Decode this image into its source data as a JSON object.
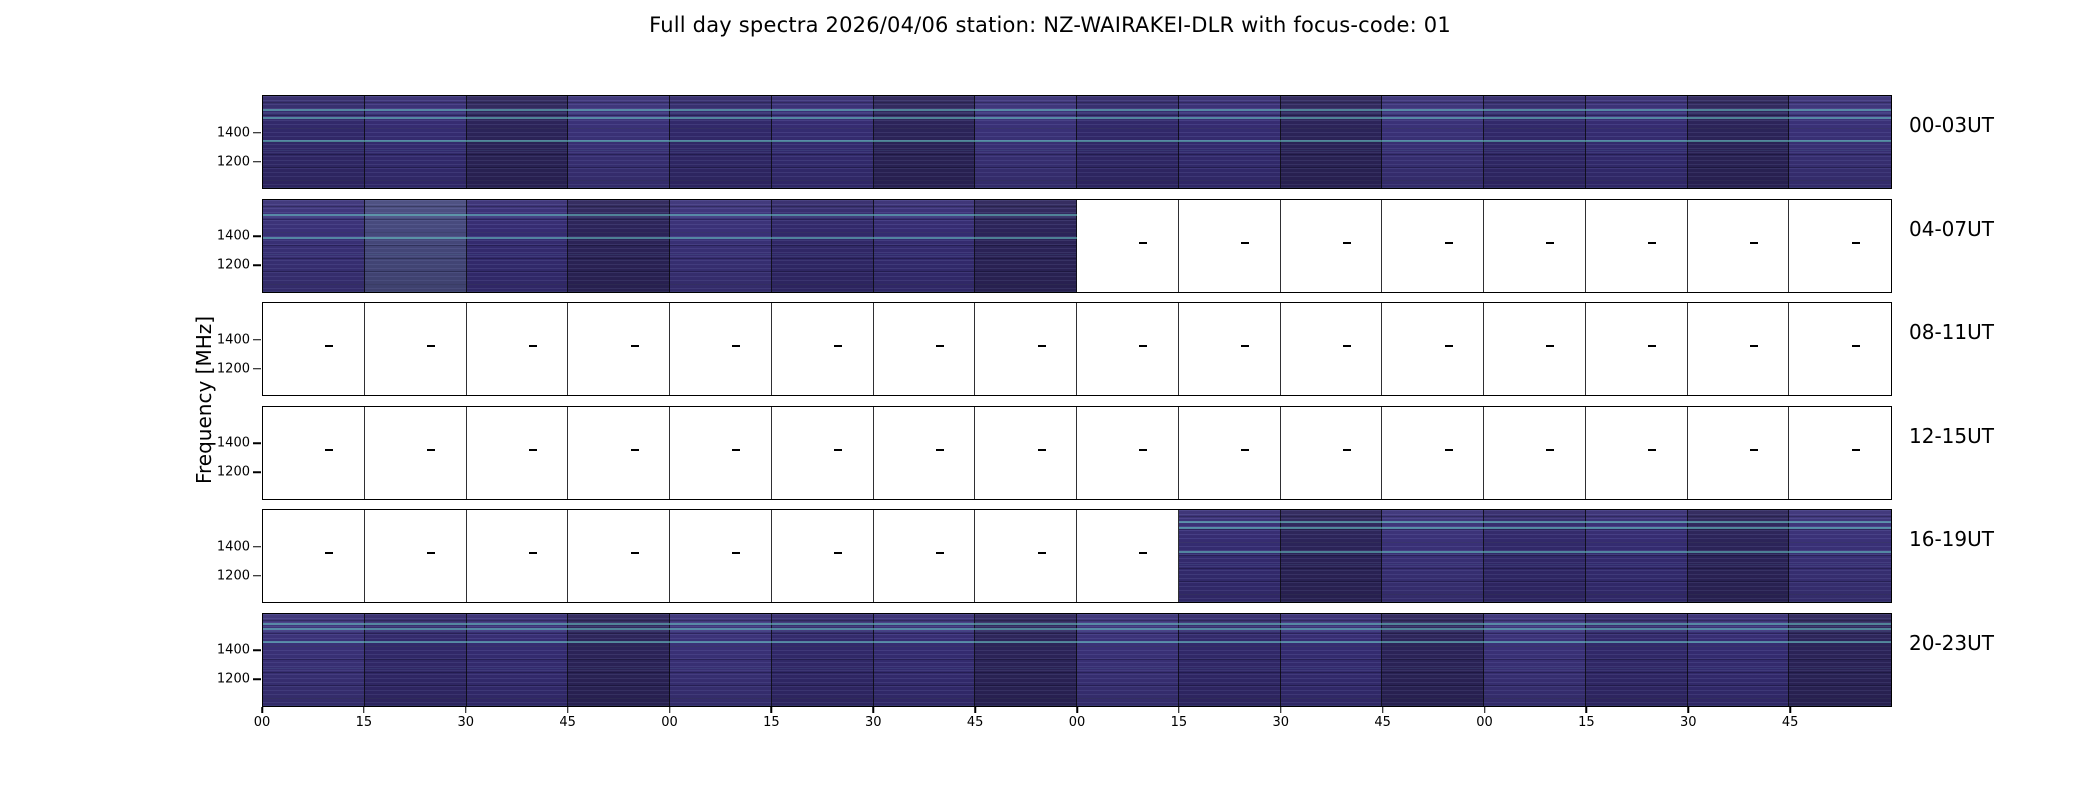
{
  "chart_data": {
    "type": "heatmap",
    "title": "Full day spectra 2026/04/06 station: NZ-WAIRAKEI-DLR with focus-code: 01",
    "date": "2026/04/06",
    "station": "NZ-WAIRAKEI-DLR",
    "focus_code": "01",
    "ylabel": "Frequency [MHz]",
    "y_tick_labels": [
      "1400",
      "1200"
    ],
    "x_tick_labels": [
      "00",
      "15",
      "30",
      "45",
      "00",
      "15",
      "30",
      "45",
      "00",
      "15",
      "30",
      "45",
      "00",
      "15",
      "30",
      "45"
    ],
    "segments_per_row": 16,
    "minutes_per_segment": 15,
    "grid": "vertical 15-minute separators, 6 stacked 4-hour panels",
    "legend": "none",
    "rows": [
      {
        "label": "00-03UT",
        "filled_from": 0,
        "filled_to": 16,
        "accent_lines": [
          15,
          24,
          49
        ]
      },
      {
        "label": "04-07UT",
        "filled_from": 0,
        "filled_to": 8,
        "accent_lines": [
          17,
          42
        ]
      },
      {
        "label": "08-11UT",
        "filled_from": 0,
        "filled_to": 0,
        "accent_lines": []
      },
      {
        "label": "12-15UT",
        "filled_from": 0,
        "filled_to": 0,
        "accent_lines": []
      },
      {
        "label": "16-19UT",
        "filled_from": 9,
        "filled_to": 16,
        "accent_lines": [
          13,
          20,
          46
        ]
      },
      {
        "label": "20-23UT",
        "filled_from": 0,
        "filled_to": 16,
        "accent_lines": [
          11,
          17,
          31
        ]
      }
    ],
    "colors": {
      "spectrogram_base": "#32296a",
      "spectrogram_light": "#3a3177",
      "spectrogram_dark": "#2c2459",
      "spectrogram_pale": "#46497c",
      "emission_cyan": "#70ddd2",
      "axis": "#000000",
      "background": "#ffffff"
    }
  }
}
